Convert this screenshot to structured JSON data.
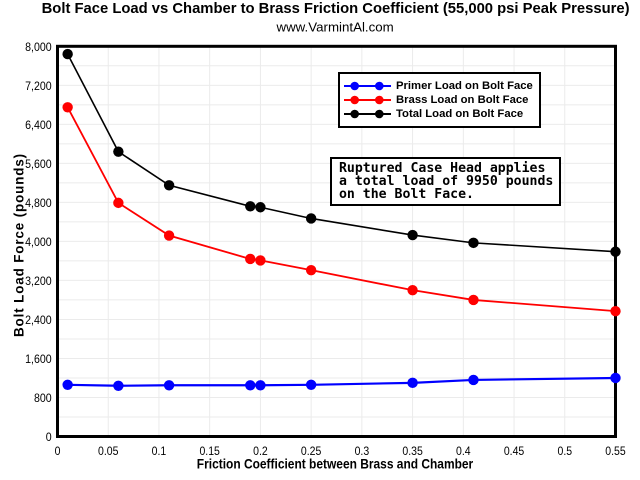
{
  "chart_data": {
    "type": "line",
    "title": "Bolt Face Load vs Chamber to Brass Friction Coefficient (55,000 psi Peak Pressure)",
    "subtitle": "www.VarmintAl.com",
    "xlabel": "Friction Coefficient between Brass and Chamber",
    "ylabel": "Bolt Load Force (pounds)",
    "xlim": [
      0,
      0.55
    ],
    "ylim": [
      0,
      8000
    ],
    "x_ticks": [
      0,
      0.05,
      0.1,
      0.15,
      0.2,
      0.25,
      0.3,
      0.35,
      0.4,
      0.45,
      0.5,
      0.55
    ],
    "x_tick_labels": [
      "0",
      "0.05",
      "0.1",
      "0.15",
      "0.2",
      "0.25",
      "0.3",
      "0.35",
      "0.4",
      "0.45",
      "0.5",
      "0.55"
    ],
    "y_ticks": [
      0,
      800,
      1600,
      2400,
      3200,
      4000,
      4800,
      5600,
      6400,
      7200,
      8000
    ],
    "y_tick_labels": [
      "0",
      "800",
      "1,600",
      "2,400",
      "3,200",
      "4,000",
      "4,800",
      "5,600",
      "6,400",
      "7,200",
      "8,000"
    ],
    "y_minor_grid_step": 400,
    "grid": true,
    "grid_color": "#ebebeb",
    "legend_position": "inside-top-right",
    "x": [
      0.01,
      0.06,
      0.11,
      0.19,
      0.2,
      0.25,
      0.35,
      0.41,
      0.55
    ],
    "series": [
      {
        "name": "Primer Load on Bolt Face",
        "color": "#0000ff",
        "line_width": 2.2,
        "values": [
          1060,
          1040,
          1050,
          1050,
          1050,
          1060,
          1100,
          1160,
          1200
        ]
      },
      {
        "name": "Brass Load on Bolt Face",
        "color": "#ff0000",
        "line_width": 1.8,
        "values": [
          6750,
          4790,
          4120,
          3640,
          3610,
          3410,
          3000,
          2800,
          2570
        ]
      },
      {
        "name": "Total Load on Bolt Face",
        "color": "#000000",
        "line_width": 1.6,
        "values": [
          7840,
          5840,
          5150,
          4720,
          4700,
          4470,
          4130,
          3970,
          3790
        ]
      }
    ]
  },
  "annotation": {
    "text": "Ruptured Case Head applies\na total load of 9950 pounds\non the Bolt Face."
  }
}
